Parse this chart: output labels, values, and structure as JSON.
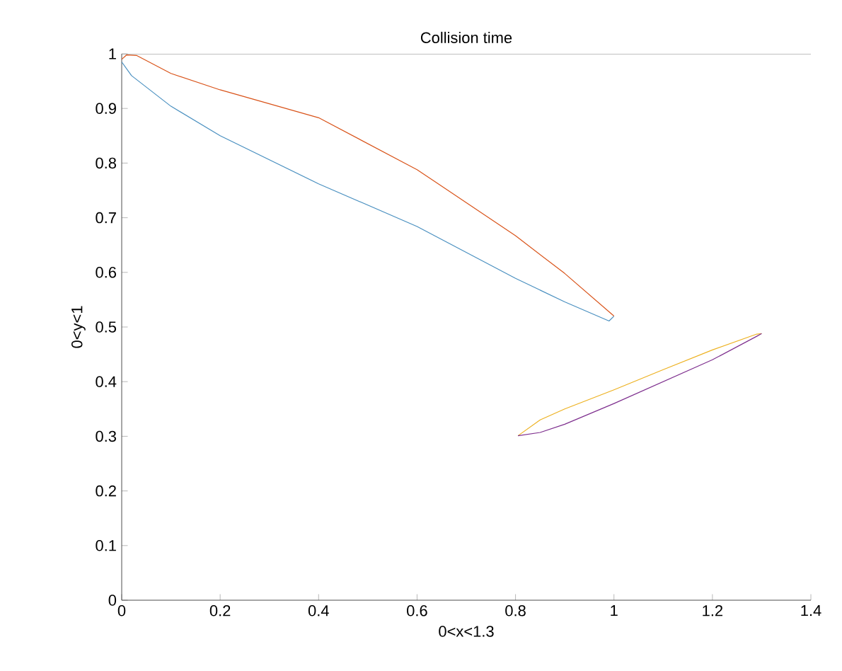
{
  "chart_data": {
    "type": "line",
    "title": "Collision time",
    "xlabel": "0<x<1.3",
    "ylabel": "0<y<1",
    "xlim": [
      0,
      1.4
    ],
    "ylim": [
      0,
      1
    ],
    "xticks": [
      0,
      0.2,
      0.4,
      0.6,
      0.8,
      1,
      1.2,
      1.4
    ],
    "yticks": [
      0,
      0.1,
      0.2,
      0.3,
      0.4,
      0.5,
      0.6,
      0.7,
      0.8,
      0.9,
      1
    ],
    "grid": false,
    "marker": "none",
    "line_style": "solid",
    "series": [
      {
        "color": "#4a90c0",
        "x": [
          0,
          0.02,
          0.1,
          0.2,
          0.4,
          0.6,
          0.8,
          0.9,
          0.99,
          1.0
        ],
        "values": [
          0.985,
          0.96,
          0.904,
          0.85,
          0.762,
          0.684,
          0.589,
          0.546,
          0.511,
          0.52
        ]
      },
      {
        "color": "#d95319",
        "x": [
          0,
          0.01,
          0.03,
          0.1,
          0.2,
          0.4,
          0.6,
          0.8,
          0.9,
          1.0
        ],
        "values": [
          0.99,
          0.998,
          0.997,
          0.964,
          0.934,
          0.883,
          0.788,
          0.667,
          0.598,
          0.52
        ]
      },
      {
        "color": "#edb120",
        "x": [
          0.805,
          0.85,
          0.9,
          1.0,
          1.1,
          1.2,
          1.29,
          1.3
        ],
        "values": [
          0.301,
          0.33,
          0.35,
          0.385,
          0.422,
          0.458,
          0.487,
          0.488
        ]
      },
      {
        "color": "#7e2f8e",
        "x": [
          0.805,
          0.85,
          0.9,
          1.0,
          1.1,
          1.2,
          1.29,
          1.3
        ],
        "values": [
          0.301,
          0.307,
          0.322,
          0.36,
          0.4,
          0.44,
          0.483,
          0.488
        ]
      },
      {
        "color": "#808080",
        "x": [
          0,
          1.4
        ],
        "values": [
          1,
          1
        ]
      }
    ]
  }
}
